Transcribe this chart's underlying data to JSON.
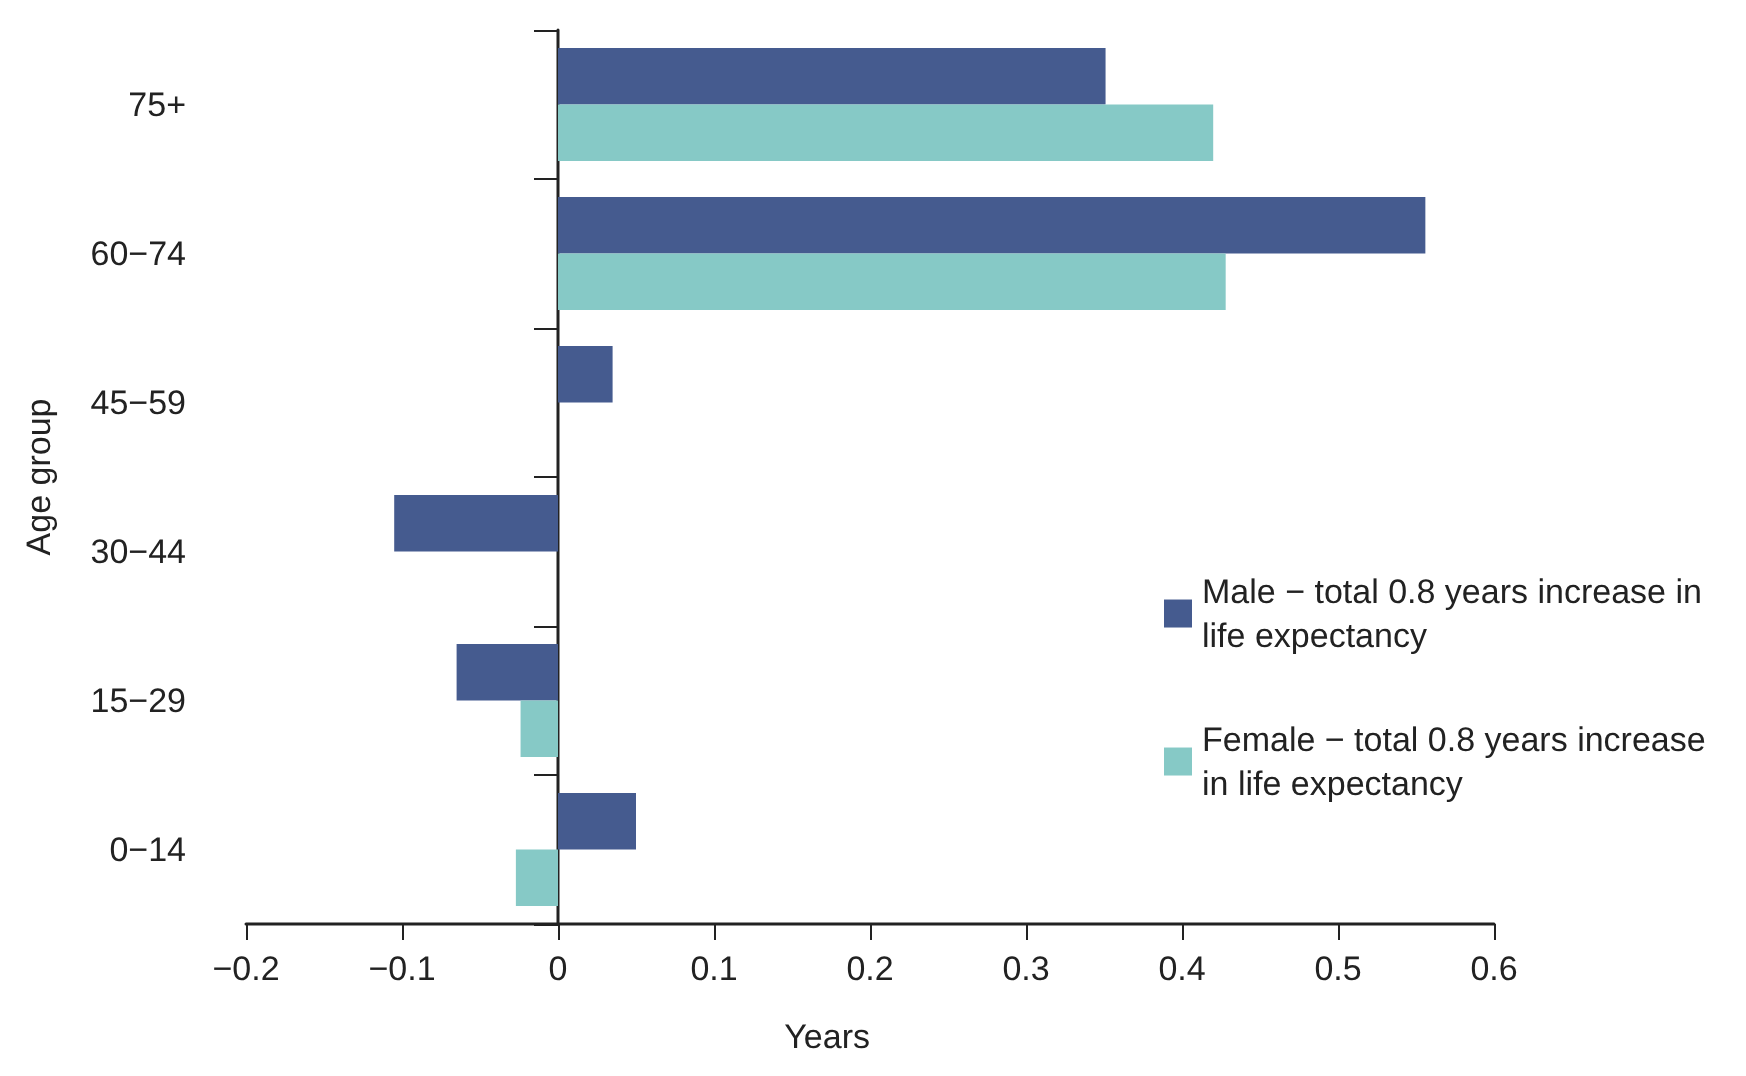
{
  "chart_data": {
    "type": "bar",
    "orientation": "horizontal",
    "xlabel": "Years",
    "ylabel": "Age group",
    "categories": [
      "75+",
      "60−74",
      "45−59",
      "30−44",
      "15−29",
      "0−14"
    ],
    "series": [
      {
        "name": "Male − total 0.8 years increase in life expectancy",
        "color": "#455b8f",
        "values": [
          0.351,
          0.556,
          0.035,
          -0.105,
          -0.065,
          0.05
        ]
      },
      {
        "name": "Female − total 0.8 years increase in life expectancy",
        "color": "#86c9c6",
        "values": [
          0.42,
          0.428,
          null,
          null,
          -0.024,
          -0.027
        ]
      }
    ],
    "xlim": [
      -0.2,
      0.6
    ],
    "xticks": [
      {
        "value": -0.2,
        "label": "−0.2"
      },
      {
        "value": -0.1,
        "label": "−0.1"
      },
      0,
      0.1,
      0.2,
      0.3,
      0.4,
      0.5,
      0.6
    ],
    "legend": "right"
  }
}
